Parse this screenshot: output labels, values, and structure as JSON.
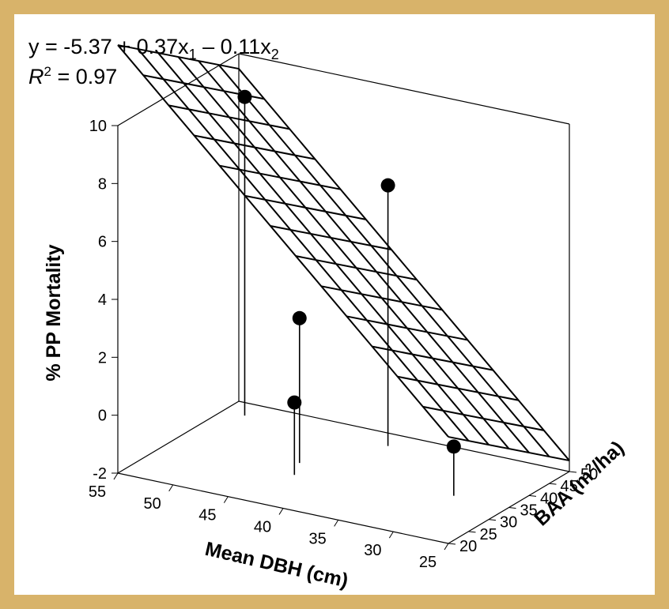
{
  "chart_data": {
    "type": "scatter",
    "subtype": "3d-scatter-with-regression-plane",
    "equation": {
      "lead": "y = -5.37 + 0.37x",
      "sub1": "1",
      "mid": " – 0.11x",
      "sub2": "2"
    },
    "r2": {
      "r": "R",
      "sup": "2",
      "rest": " = 0.97"
    },
    "zlabel": "% PP Mortality",
    "xlabel": "Mean DBH (cm)",
    "ylabel": {
      "pre": "BAA (m",
      "sup": "2",
      "post": "/ha)"
    },
    "z_ticks": [
      "10",
      "8",
      "6",
      "4",
      "2",
      "0",
      "-2"
    ],
    "x_ticks": [
      "55",
      "50",
      "45",
      "40",
      "35",
      "30",
      "25"
    ],
    "y_ticks": [
      "50",
      "45",
      "40",
      "35",
      "30",
      "25",
      "20"
    ],
    "xlim": [
      25,
      55
    ],
    "ylim": [
      20,
      50
    ],
    "zlim": [
      -2,
      10
    ],
    "points": [
      {
        "dbh": 53,
        "baa": 46,
        "mortality": 9.0
      },
      {
        "dbh": 40,
        "baa": 46,
        "mortality": 7.0
      },
      {
        "dbh": 44,
        "baa": 35,
        "mortality": 3.0
      },
      {
        "dbh": 43,
        "baa": 31,
        "mortality": 0.5
      },
      {
        "dbh": 30,
        "baa": 35,
        "mortality": -0.3
      }
    ],
    "colors": {
      "background": "#ffffff",
      "frame": "#d8b36a",
      "ink": "#000000"
    }
  }
}
